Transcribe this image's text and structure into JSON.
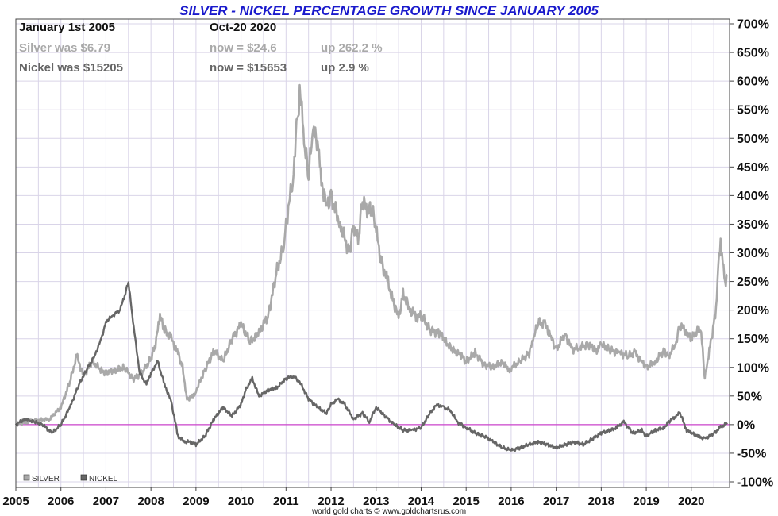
{
  "chart_data": {
    "type": "line",
    "title": "SILVER - NICKEL PERCENTAGE GROWTH SINCE JANUARY 2005",
    "xlim": [
      2005,
      2020.85
    ],
    "ylim": [
      -100,
      700
    ],
    "x_ticks": [
      "2005",
      "2006",
      "2007",
      "2008",
      "2009",
      "2010",
      "2011",
      "2012",
      "2013",
      "2014",
      "2015",
      "2016",
      "2017",
      "2018",
      "2019",
      "2020"
    ],
    "y_ticks": [
      "700%",
      "650%",
      "600%",
      "550%",
      "500%",
      "450%",
      "400%",
      "350%",
      "300%",
      "250%",
      "200%",
      "150%",
      "100%",
      "50%",
      "0%",
      "-50%",
      "-100%"
    ],
    "grid": true,
    "legend_placement": "bottom-left",
    "reference_line": {
      "y": 0,
      "color": "#cc44cc"
    },
    "annotations": {
      "start_label": "January 1st 2005",
      "end_label": "Oct-20  2020",
      "silver_was": "Silver was $6.79",
      "silver_now": "now = $24.6",
      "silver_up": "up 262.2 %",
      "nickel_was": "Nickel was $15205",
      "nickel_now": "now = $15653",
      "nickel_up": "up 2.9 %"
    },
    "footer": "world gold charts © www.goldchartsrus.com",
    "series": [
      {
        "name": "SILVER",
        "color": "#a9a9a9",
        "x": [
          2005,
          2005.25,
          2005.5,
          2005.75,
          2006,
          2006.2,
          2006.35,
          2006.5,
          2006.7,
          2006.9,
          2007,
          2007.2,
          2007.4,
          2007.6,
          2007.8,
          2008,
          2008.1,
          2008.2,
          2008.3,
          2008.45,
          2008.6,
          2008.7,
          2008.8,
          2008.95,
          2009,
          2009.2,
          2009.4,
          2009.6,
          2009.8,
          2010,
          2010.2,
          2010.4,
          2010.6,
          2010.8,
          2010.95,
          2011,
          2011.15,
          2011.25,
          2011.32,
          2011.4,
          2011.5,
          2011.6,
          2011.7,
          2011.75,
          2011.9,
          2012,
          2012.2,
          2012.4,
          2012.5,
          2012.6,
          2012.7,
          2012.8,
          2012.9,
          2013,
          2013.1,
          2013.25,
          2013.35,
          2013.5,
          2013.6,
          2013.75,
          2013.9,
          2014,
          2014.2,
          2014.4,
          2014.5,
          2014.7,
          2014.9,
          2015,
          2015.2,
          2015.4,
          2015.6,
          2015.8,
          2015.95,
          2016,
          2016.2,
          2016.4,
          2016.5,
          2016.6,
          2016.75,
          2016.9,
          2017,
          2017.2,
          2017.35,
          2017.5,
          2017.7,
          2017.9,
          2018,
          2018.2,
          2018.4,
          2018.6,
          2018.75,
          2018.9,
          2019,
          2019.2,
          2019.4,
          2019.5,
          2019.65,
          2019.75,
          2019.9,
          2020,
          2020.15,
          2020.22,
          2020.3,
          2020.4,
          2020.5,
          2020.55,
          2020.6,
          2020.65,
          2020.7,
          2020.75,
          2020.8
        ],
        "y": [
          0,
          5,
          8,
          10,
          30,
          75,
          120,
          85,
          110,
          95,
          90,
          95,
          100,
          80,
          90,
          115,
          140,
          190,
          165,
          150,
          125,
          100,
          45,
          50,
          60,
          95,
          130,
          110,
          150,
          175,
          145,
          160,
          190,
          270,
          310,
          350,
          430,
          530,
          590,
          490,
          440,
          510,
          500,
          440,
          380,
          400,
          350,
          300,
          350,
          320,
          395,
          370,
          380,
          340,
          290,
          250,
          225,
          185,
          230,
          200,
          190,
          190,
          165,
          160,
          150,
          130,
          120,
          110,
          125,
          105,
          100,
          110,
          95,
          100,
          110,
          125,
          150,
          180,
          175,
          150,
          130,
          160,
          130,
          135,
          140,
          130,
          140,
          130,
          125,
          120,
          125,
          110,
          100,
          110,
          130,
          120,
          140,
          175,
          160,
          150,
          165,
          160,
          80,
          130,
          175,
          200,
          280,
          320,
          290,
          250,
          262
        ]
      },
      {
        "name": "NICKEL",
        "color": "#666666",
        "x": [
          2005,
          2005.2,
          2005.4,
          2005.6,
          2005.8,
          2006,
          2006.2,
          2006.4,
          2006.6,
          2006.75,
          2006.9,
          2007,
          2007.15,
          2007.3,
          2007.4,
          2007.5,
          2007.6,
          2007.75,
          2007.9,
          2008,
          2008.15,
          2008.3,
          2008.45,
          2008.6,
          2008.75,
          2008.9,
          2009,
          2009.2,
          2009.4,
          2009.6,
          2009.8,
          2010,
          2010.1,
          2010.25,
          2010.4,
          2010.6,
          2010.8,
          2011,
          2011.15,
          2011.3,
          2011.5,
          2011.7,
          2011.9,
          2012,
          2012.15,
          2012.3,
          2012.5,
          2012.7,
          2012.85,
          2013,
          2013.2,
          2013.4,
          2013.6,
          2013.8,
          2014,
          2014.2,
          2014.35,
          2014.5,
          2014.65,
          2014.8,
          2015,
          2015.2,
          2015.4,
          2015.6,
          2015.8,
          2016,
          2016.2,
          2016.4,
          2016.6,
          2016.8,
          2017,
          2017.2,
          2017.4,
          2017.6,
          2017.8,
          2018,
          2018.2,
          2018.35,
          2018.5,
          2018.7,
          2018.9,
          2019,
          2019.2,
          2019.4,
          2019.5,
          2019.65,
          2019.75,
          2019.9,
          2020,
          2020.15,
          2020.3,
          2020.5,
          2020.65,
          2020.8
        ],
        "y": [
          0,
          10,
          5,
          0,
          -15,
          0,
          30,
          70,
          100,
          120,
          150,
          180,
          190,
          200,
          220,
          250,
          180,
          90,
          70,
          90,
          110,
          70,
          40,
          -20,
          -30,
          -30,
          -35,
          -20,
          10,
          30,
          15,
          35,
          60,
          80,
          50,
          60,
          65,
          80,
          85,
          75,
          45,
          30,
          20,
          35,
          45,
          35,
          10,
          20,
          5,
          30,
          15,
          0,
          -10,
          -10,
          -5,
          20,
          35,
          30,
          25,
          5,
          -5,
          -15,
          -20,
          -30,
          -40,
          -45,
          -40,
          -35,
          -30,
          -35,
          -40,
          -35,
          -30,
          -35,
          -25,
          -15,
          -10,
          -5,
          5,
          -15,
          -10,
          -20,
          -10,
          -5,
          5,
          15,
          20,
          -10,
          -15,
          -20,
          -25,
          -15,
          -5,
          3
        ]
      }
    ]
  }
}
